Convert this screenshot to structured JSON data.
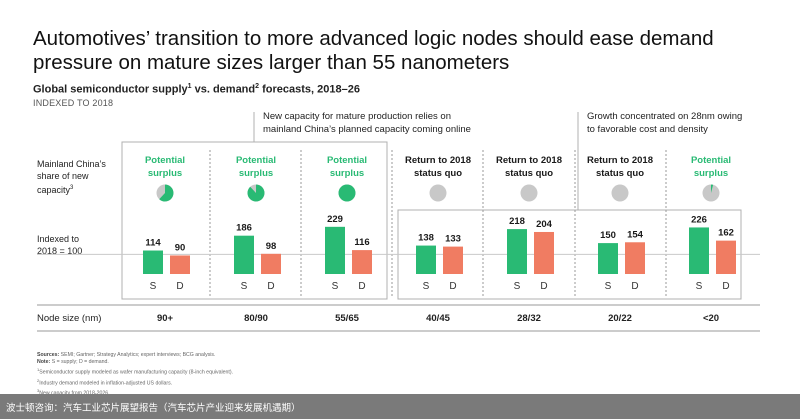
{
  "title": "Automotives’ transition to more advanced logic nodes should ease demand pressure on mature sizes larger than 55 nanometers",
  "subtitle_text": "Global semiconductor supply",
  "subtitle_sup1": "1",
  "subtitle_mid": " vs. demand",
  "subtitle_sup2": "2",
  "subtitle_tail": " forecasts, 2018–26",
  "indexed_note": "INDEXED TO 2018",
  "callouts": {
    "left_line1": "New capacity for mature production relies on",
    "left_line2": "mainland China’s planned capacity coming online",
    "right_line1": "Growth concentrated on 28nm owing",
    "right_line2": "to favorable cost and density"
  },
  "side_labels": {
    "share_line1": "Mainland China’s",
    "share_line2": "share of new",
    "share_line3": "capacity",
    "share_sup": "3",
    "index_line1": "Indexed to",
    "index_line2": "2018 = 100"
  },
  "node_header": "Node size (nm)",
  "colors": {
    "supply": "#29ba74",
    "demand": "#f07c62",
    "surplus_text": "#29ba74",
    "pie_fill": "#29ba74",
    "pie_bg": "#c8c8c8",
    "box": "#b0b0b0",
    "footer": "#7a7a7a"
  },
  "chart_data": {
    "type": "bar",
    "categories": [
      "90+",
      "80/90",
      "55/65",
      "40/45",
      "28/32",
      "20/22",
      "<20"
    ],
    "series": [
      {
        "name": "S",
        "values": [
          114,
          186,
          229,
          138,
          218,
          150,
          226
        ]
      },
      {
        "name": "D",
        "values": [
          90,
          98,
          116,
          133,
          204,
          154,
          162
        ]
      }
    ],
    "status": [
      [
        "Potential",
        "surplus"
      ],
      [
        "Potential",
        "surplus"
      ],
      [
        "Potential",
        "surplus"
      ],
      [
        "Return to 2018",
        "status quo"
      ],
      [
        "Return to 2018",
        "status quo"
      ],
      [
        "Return to 2018",
        "status quo"
      ],
      [
        "Potential",
        "surplus"
      ]
    ],
    "status_kind": [
      "surplus",
      "surplus",
      "surplus",
      "quo",
      "quo",
      "quo",
      "surplus"
    ],
    "china_share_fraction": [
      0.62,
      0.88,
      1.0,
      0.0,
      0.0,
      0.0,
      0.04
    ],
    "bar_labels": [
      "S",
      "D"
    ],
    "ylim": [
      0,
      250
    ]
  },
  "footnotes": {
    "sources_label": "Sources:",
    "sources_text": " SEMI; Gartner; Strategy Analytics; expert interviews; BCG analysis.",
    "note_label": "Note:",
    "note_text": " S = supply; D = demand.",
    "fn1": "Semiconductor supply modeled as wafer manufacturing capacity (8-inch equivalent).",
    "fn2": "Industry demand modeled in inflation-adjusted US dollars.",
    "fn3": "New capacity from 2018-2026."
  },
  "footer_text": "波士顿咨询：汽车工业芯片展望报告（汽车芯片产业迎来发展机遇期）"
}
